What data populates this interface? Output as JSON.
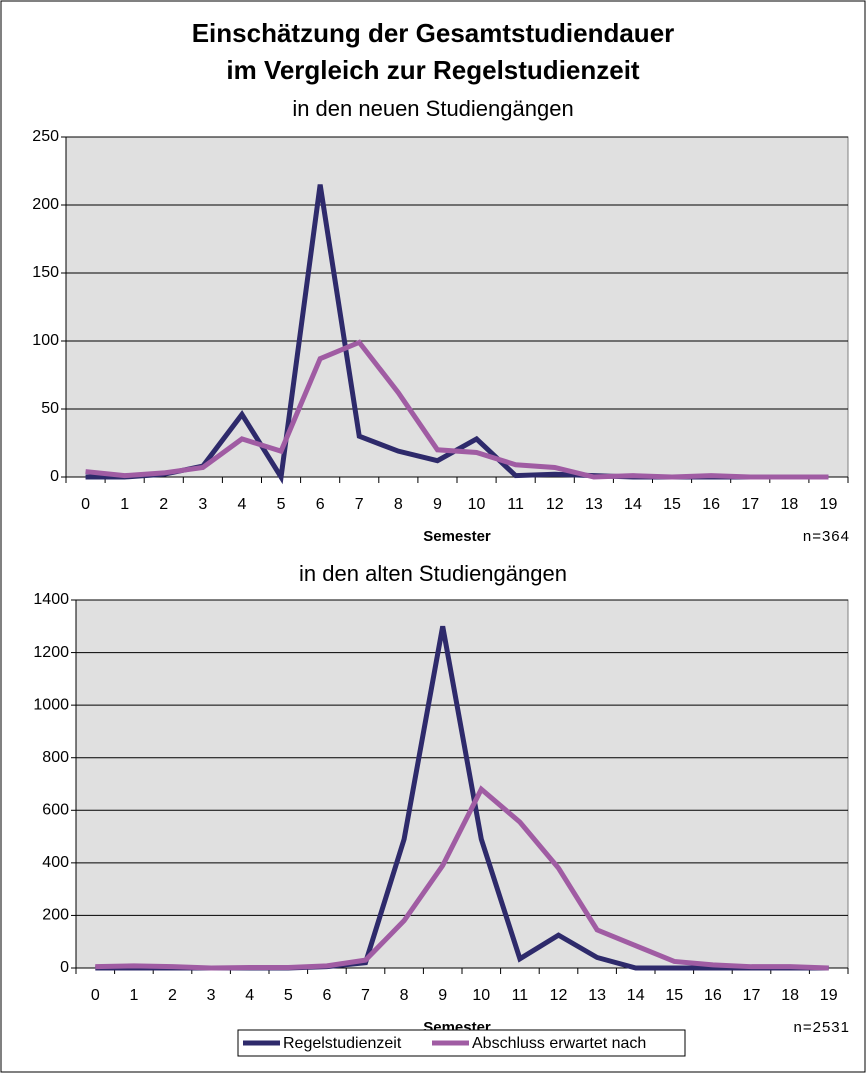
{
  "chart_data": [
    {
      "type": "line",
      "title": [
        "Einschätzung der Gesamtstudiendauer",
        "im Vergleich zur Regelstudienzeit"
      ],
      "subtitle": "in den neuen Studiengängen",
      "x_label": "Semester",
      "annotation": "n=364",
      "categories": [
        0,
        1,
        2,
        3,
        4,
        5,
        6,
        7,
        8,
        9,
        10,
        11,
        12,
        13,
        14,
        15,
        16,
        17,
        18,
        19
      ],
      "ylim": [
        0,
        250
      ],
      "yticks": [
        0,
        50,
        100,
        150,
        200,
        250
      ],
      "grid": true,
      "series": [
        {
          "color": "#2e2a6b",
          "values": [
            0,
            0,
            2,
            8,
            46,
            0,
            215,
            30,
            19,
            12,
            28,
            1,
            2,
            1,
            0,
            0,
            0,
            0,
            0,
            0
          ]
        },
        {
          "color": "#a05ca3",
          "values": [
            4,
            1,
            3,
            7,
            28,
            19,
            87,
            99,
            62,
            20,
            18,
            9,
            7,
            0,
            1,
            0,
            1,
            0,
            0,
            0
          ]
        }
      ]
    },
    {
      "type": "line",
      "subtitle": "in den alten Studiengängen",
      "x_label": "Semester",
      "annotation": "n=2531",
      "categories": [
        0,
        1,
        2,
        3,
        4,
        5,
        6,
        7,
        8,
        9,
        10,
        11,
        12,
        13,
        14,
        15,
        16,
        17,
        18,
        19
      ],
      "ylim": [
        0,
        1400
      ],
      "yticks": [
        0,
        200,
        400,
        600,
        800,
        1000,
        1200,
        1400
      ],
      "grid": true,
      "legend": "bottom",
      "series": [
        {
          "name": "Regelstudienzeit",
          "color": "#2e2a6b",
          "values": [
            0,
            0,
            0,
            0,
            0,
            0,
            5,
            20,
            490,
            1300,
            490,
            35,
            125,
            40,
            0,
            0,
            0,
            0,
            0,
            0
          ]
        },
        {
          "name": "Abschluss erwartet nach",
          "color": "#a05ca3",
          "values": [
            5,
            8,
            5,
            0,
            2,
            2,
            8,
            30,
            180,
            390,
            680,
            555,
            380,
            145,
            85,
            25,
            12,
            5,
            5,
            0
          ]
        }
      ]
    }
  ]
}
